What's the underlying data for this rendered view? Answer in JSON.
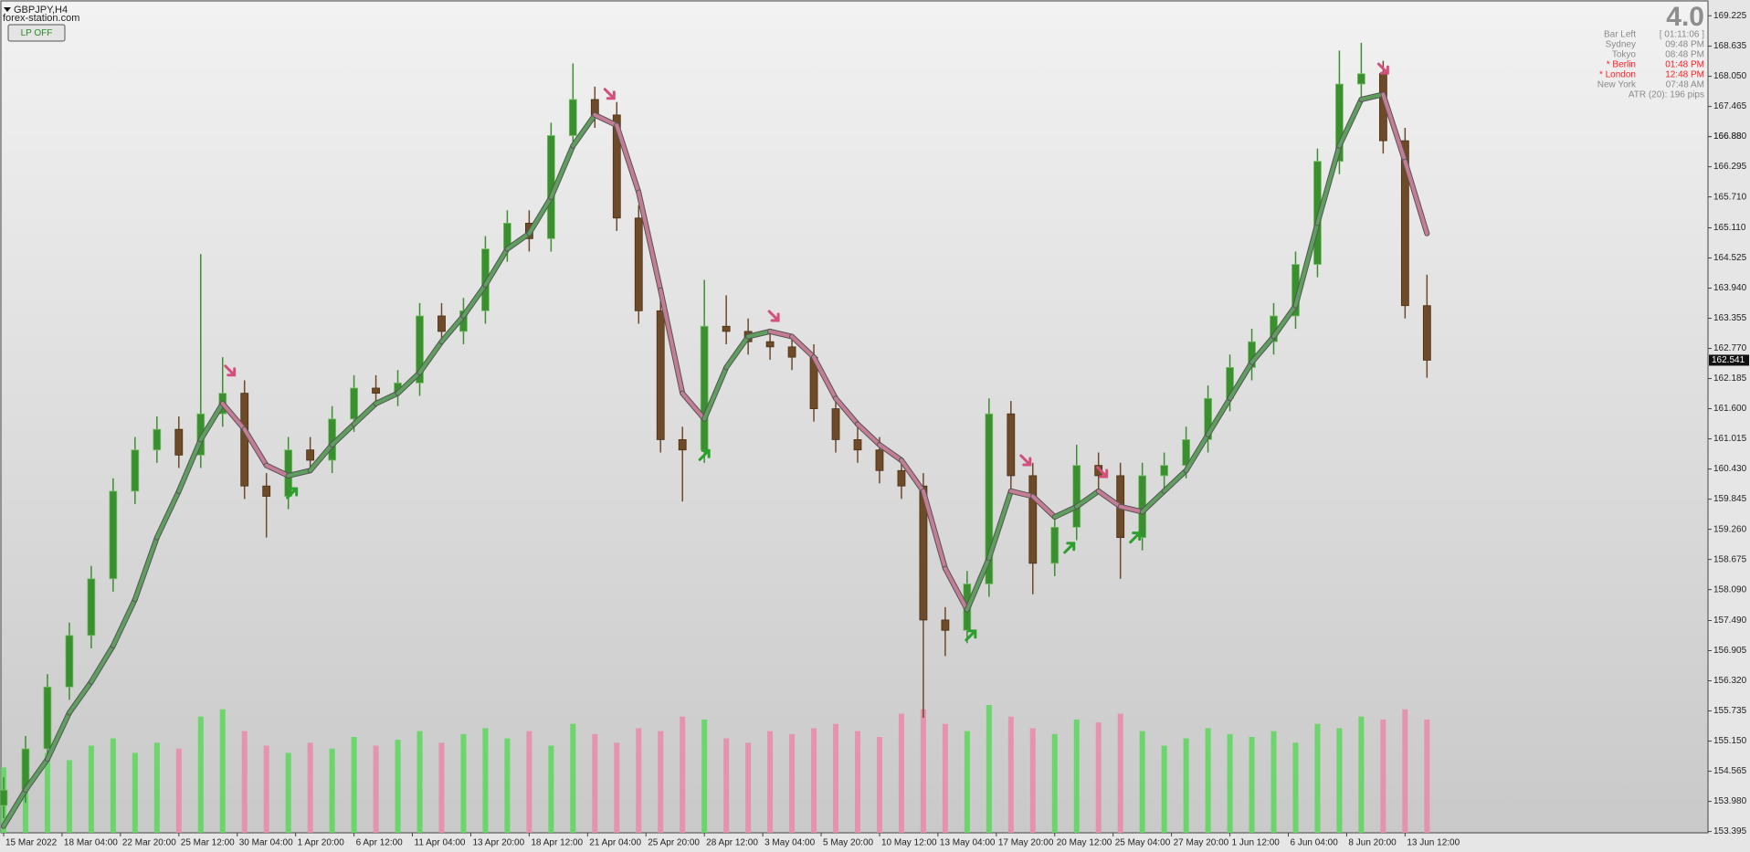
{
  "chart_data": {
    "type": "candlestick",
    "title": "GBPJPY,H4",
    "subtitle": "forex-station.com",
    "button_label": "LP OFF",
    "x": [
      0,
      6,
      12,
      18,
      24,
      30,
      36,
      42,
      48,
      54,
      60,
      66,
      72,
      78,
      84,
      90,
      96,
      102,
      108,
      114,
      120,
      126,
      132,
      138,
      144,
      150,
      156,
      162,
      168,
      174,
      180,
      186,
      192,
      198,
      204,
      210,
      216,
      222,
      228,
      234,
      240,
      246,
      252,
      258,
      264,
      270,
      276,
      282,
      288,
      294,
      300,
      306,
      312,
      318,
      324,
      330,
      336,
      342,
      348,
      354,
      360,
      366,
      372,
      378,
      384,
      390
    ],
    "open": [
      153.9,
      154.2,
      155.0,
      156.2,
      157.2,
      158.3,
      160.0,
      160.8,
      161.2,
      160.7,
      161.5,
      161.9,
      160.1,
      159.9,
      160.8,
      160.6,
      161.4,
      162.0,
      161.9,
      162.1,
      163.4,
      163.1,
      163.5,
      164.7,
      165.2,
      164.9,
      166.9,
      167.6,
      167.3,
      165.3,
      163.5,
      161.0,
      160.8,
      163.2,
      163.1,
      162.9,
      162.8,
      162.6,
      161.6,
      161.0,
      160.8,
      160.4,
      160.1,
      157.5,
      157.3,
      158.2,
      161.5,
      160.3,
      158.6,
      159.3,
      160.5,
      160.3,
      159.1,
      160.3,
      160.5,
      161.0,
      161.8,
      162.4,
      162.9,
      163.4,
      164.4,
      166.4,
      167.9,
      168.1,
      166.8,
      163.6
    ],
    "high": [
      154.45,
      155.25,
      156.45,
      157.45,
      158.55,
      160.25,
      161.05,
      161.45,
      161.45,
      164.6,
      162.6,
      162.15,
      160.35,
      161.05,
      161.05,
      161.65,
      162.25,
      162.25,
      162.35,
      163.65,
      163.65,
      163.75,
      164.95,
      165.45,
      165.45,
      167.15,
      168.3,
      167.85,
      167.55,
      165.55,
      163.75,
      161.25,
      164.1,
      163.8,
      163.35,
      163.15,
      163.05,
      162.85,
      161.85,
      161.25,
      161.05,
      160.65,
      160.35,
      157.75,
      158.45,
      161.8,
      161.75,
      160.55,
      159.55,
      160.9,
      160.75,
      160.55,
      160.55,
      160.75,
      161.25,
      162.05,
      162.65,
      163.15,
      163.65,
      164.65,
      166.65,
      168.55,
      168.7,
      168.35,
      167.05,
      164.2
    ],
    "low": [
      153.65,
      153.95,
      154.75,
      155.95,
      156.95,
      158.05,
      159.75,
      160.55,
      160.45,
      160.45,
      161.25,
      159.85,
      159.1,
      159.65,
      160.35,
      160.35,
      161.15,
      161.65,
      161.65,
      161.85,
      162.85,
      162.85,
      163.25,
      164.45,
      164.65,
      164.65,
      166.65,
      167.05,
      165.05,
      163.25,
      160.75,
      159.8,
      160.55,
      162.85,
      162.65,
      162.55,
      162.35,
      161.35,
      160.75,
      160.55,
      160.15,
      159.85,
      155.6,
      156.8,
      157.05,
      157.95,
      160.05,
      158.0,
      158.35,
      159.05,
      160.05,
      158.3,
      158.85,
      160.05,
      160.25,
      160.75,
      161.55,
      162.15,
      162.65,
      163.15,
      164.15,
      166.15,
      167.65,
      166.55,
      163.35,
      162.2
    ],
    "close": [
      154.2,
      155.0,
      156.2,
      157.2,
      158.3,
      160.0,
      160.8,
      161.2,
      160.7,
      161.5,
      161.9,
      160.1,
      159.9,
      160.8,
      160.6,
      161.4,
      162.0,
      161.9,
      162.1,
      163.4,
      163.1,
      163.5,
      164.7,
      165.2,
      164.9,
      166.9,
      167.6,
      167.3,
      165.3,
      163.5,
      161.0,
      160.8,
      163.2,
      163.1,
      162.9,
      162.8,
      162.6,
      161.6,
      161.0,
      160.8,
      160.4,
      160.1,
      157.5,
      157.3,
      158.2,
      161.5,
      160.3,
      158.6,
      159.3,
      160.5,
      160.3,
      159.1,
      160.3,
      160.5,
      161.0,
      161.8,
      162.4,
      162.9,
      163.4,
      164.4,
      166.4,
      167.9,
      168.1,
      166.8,
      163.6,
      162.541
    ],
    "ma": [
      153.5,
      154.2,
      154.8,
      155.7,
      156.3,
      157.0,
      157.9,
      159.1,
      160.0,
      161.0,
      161.7,
      161.2,
      160.5,
      160.3,
      160.4,
      160.9,
      161.3,
      161.7,
      161.9,
      162.3,
      162.9,
      163.4,
      164.0,
      164.7,
      165.0,
      165.7,
      166.7,
      167.3,
      167.1,
      165.8,
      163.9,
      161.9,
      161.4,
      162.4,
      163.0,
      163.1,
      163.0,
      162.6,
      161.8,
      161.3,
      160.9,
      160.6,
      160.0,
      158.5,
      157.7,
      158.7,
      160.0,
      159.9,
      159.5,
      159.7,
      160.0,
      159.7,
      159.6,
      160.0,
      160.4,
      161.1,
      161.8,
      162.5,
      163.0,
      163.6,
      165.2,
      166.7,
      167.6,
      167.7,
      166.4,
      165.0
    ],
    "volumes": [
      45,
      40,
      55,
      50,
      60,
      65,
      55,
      62,
      58,
      80,
      85,
      70,
      60,
      55,
      62,
      58,
      66,
      60,
      64,
      70,
      62,
      68,
      72,
      65,
      70,
      60,
      75,
      68,
      62,
      72,
      70,
      80,
      78,
      65,
      62,
      70,
      68,
      72,
      75,
      70,
      66,
      82,
      85,
      75,
      70,
      88,
      80,
      72,
      68,
      78,
      76,
      82,
      70,
      60,
      65,
      72,
      68,
      66,
      70,
      62,
      75,
      72,
      80,
      78,
      85,
      78
    ],
    "sell_signals": {
      "x": [
        62,
        166,
        211,
        280,
        301,
        378
      ],
      "values": [
        162.34,
        167.71,
        163.4,
        160.6,
        160.37,
        168.2
      ]
    },
    "buy_signals": {
      "x": [
        79,
        192,
        265,
        292,
        310
      ],
      "values": [
        159.96,
        160.7,
        157.2,
        158.9,
        159.1
      ]
    },
    "current_price": 162.541,
    "up_color": "#3a8f2e",
    "down_color": "#6e4a26",
    "ma_up_color": "#5e9e5e",
    "ma_down_color": "#c47d95",
    "volume_up_color": "#5ad65a",
    "volume_down_color": "#ea8aa8",
    "buy_color": "#2ca02c",
    "sell_color": "#d4507c",
    "xlim": [
      -1,
      467
    ],
    "ylim": [
      153.37,
      169.46
    ],
    "yticks": [
      169.225,
      168.635,
      {
        "value": 168.05,
        "label": "168.050"
      },
      167.465,
      166.88,
      {
        "value": 166.88,
        "label": "166.880"
      },
      166.295,
      {
        "value": 165.71,
        "label": "165.710"
      },
      {
        "value": 165.11,
        "label": "165.110"
      },
      164.525,
      {
        "value": 163.94,
        "label": "163.940"
      },
      163.355,
      {
        "value": 162.77,
        "label": "162.770"
      },
      162.185,
      {
        "value": 161.6,
        "label": "161.600"
      },
      161.015,
      {
        "value": 160.43,
        "label": "160.430"
      },
      159.845,
      {
        "value": 159.26,
        "label": "159.260"
      },
      158.675,
      {
        "value": 158.09,
        "label": "158.090"
      },
      {
        "value": 157.49,
        "label": "157.490"
      },
      156.905,
      {
        "value": 156.32,
        "label": "156.320"
      },
      155.735,
      {
        "value": 155.15,
        "label": "155.150"
      },
      154.565,
      {
        "value": 153.98,
        "label": "153.980"
      },
      153.395
    ],
    "xticks": [
      {
        "value": 0,
        "label": "15 Mar 2022"
      },
      {
        "value": 16,
        "label": "18 Mar 04:00"
      },
      {
        "value": 32,
        "label": "22 Mar 20:00"
      },
      {
        "value": 48,
        "label": "25 Mar 12:00"
      },
      {
        "value": 64,
        "label": "30 Mar 04:00"
      },
      {
        "value": 80,
        "label": "1 Apr 20:00"
      },
      {
        "value": 96,
        "label": "6 Apr 12:00"
      },
      {
        "value": 112,
        "label": "11 Apr 04:00"
      },
      {
        "value": 128,
        "label": "13 Apr 20:00"
      },
      {
        "value": 144,
        "label": "18 Apr 12:00"
      },
      {
        "value": 160,
        "label": "21 Apr 04:00"
      },
      {
        "value": 176,
        "label": "25 Apr 20:00"
      },
      {
        "value": 192,
        "label": "28 Apr 12:00"
      },
      {
        "value": 208,
        "label": "3 May 04:00"
      },
      {
        "value": 224,
        "label": "5 May 20:00"
      },
      {
        "value": 240,
        "label": "10 May 12:00"
      },
      {
        "value": 256,
        "label": "13 May 04:00"
      },
      {
        "value": 272,
        "label": "17 May 20:00"
      },
      {
        "value": 288,
        "label": "20 May 12:00"
      },
      {
        "value": 304,
        "label": "25 May 04:00"
      },
      {
        "value": 320,
        "label": "27 May 20:00"
      },
      {
        "value": 336,
        "label": "1 Jun 12:00"
      },
      {
        "value": 352,
        "label": "6 Jun 04:00"
      },
      {
        "value": 368,
        "label": "8 Jun 20:00"
      },
      {
        "value": 384,
        "label": "13 Jun 12:00"
      }
    ],
    "info": {
      "version": "4.0",
      "highlight_color": "#ff2020",
      "rows": [
        {
          "label": "Bar Left",
          "value": "[ 01:11:06 ]",
          "highlight": false
        },
        {
          "label": "Sydney",
          "value": "09:48 PM",
          "highlight": false
        },
        {
          "label": "Tokyo",
          "value": "08:48 PM",
          "highlight": false
        },
        {
          "label": "* Berlin",
          "value": "01:48 PM",
          "highlight": true
        },
        {
          "label": "* London",
          "value": "12:48 PM",
          "highlight": true
        },
        {
          "label": "New York",
          "value": "07:48 AM",
          "highlight": false
        }
      ],
      "atr": "ATR (20): 196 pips"
    }
  }
}
